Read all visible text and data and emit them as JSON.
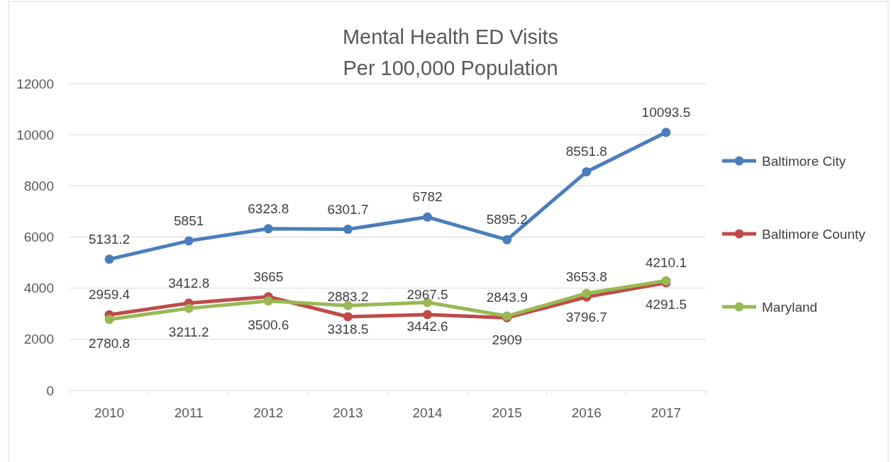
{
  "chart_data": {
    "type": "line",
    "title": "Mental Health ED Visits\nPer 100,000 Population",
    "categories": [
      "2010",
      "2011",
      "2012",
      "2013",
      "2014",
      "2015",
      "2016",
      "2017"
    ],
    "series": [
      {
        "name": "Baltimore City",
        "color": "#4a7ebb",
        "values": [
          5131.2,
          5851,
          6323.8,
          6301.7,
          6782,
          5895.2,
          8551.8,
          10093.5
        ]
      },
      {
        "name": "Baltimore County",
        "color": "#be4b48",
        "values": [
          2959.4,
          3412.8,
          3665,
          2883.2,
          2967.5,
          2843.9,
          3653.8,
          4210.1
        ]
      },
      {
        "name": "Maryland",
        "color": "#98b954",
        "values": [
          2780.8,
          3211.2,
          3500.6,
          3318.5,
          3442.6,
          2909,
          3796.7,
          4291.5
        ]
      }
    ],
    "ylim": [
      0,
      12000
    ],
    "yticks": [
      0,
      2000,
      4000,
      6000,
      8000,
      10000,
      12000
    ],
    "grid": "y",
    "legend": "right",
    "marker": "circle",
    "line_style": "solid",
    "data_labels": true
  }
}
